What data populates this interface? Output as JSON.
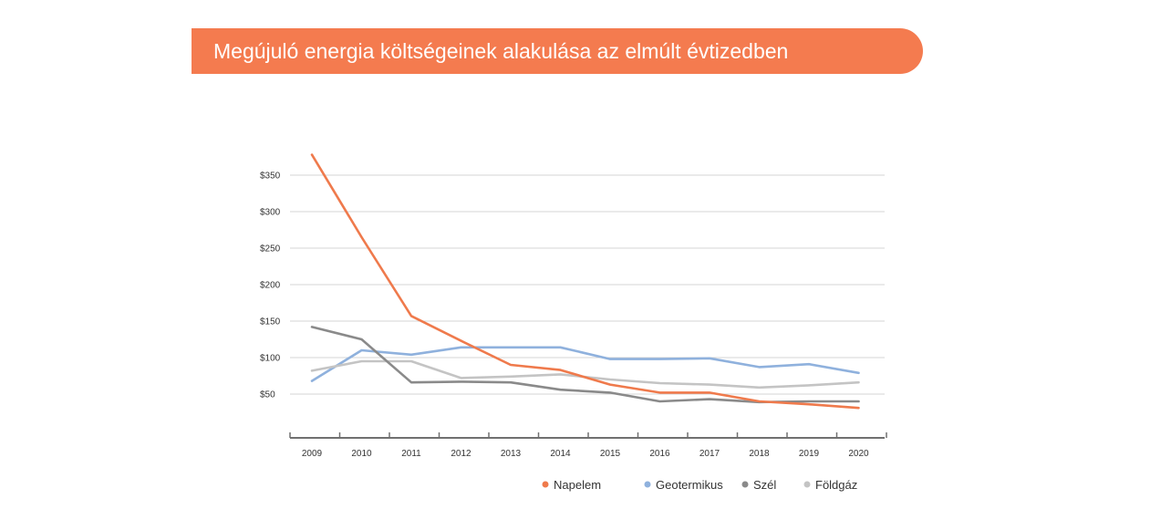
{
  "title": "Megújuló energia költségeinek alakulása az elmúlt évtizedben",
  "colors": {
    "banner": "#f47b4f",
    "Napelem": "#ef7a4c",
    "Geotermikus": "#8fb1dd",
    "Szél": "#8a8a8a",
    "Földgáz": "#c4c4c4",
    "grid": "#d4d4d4",
    "axis": "#707070"
  },
  "chart_data": {
    "type": "line",
    "title": "Megújuló energia költségeinek alakulása az elmúlt évtizedben",
    "xlabel": "",
    "ylabel": "",
    "categories": [
      "2009",
      "2010",
      "2011",
      "2012",
      "2013",
      "2014",
      "2015",
      "2016",
      "2017",
      "2018",
      "2019",
      "2020"
    ],
    "y_ticks": [
      {
        "value": 50,
        "label": "$50"
      },
      {
        "value": 100,
        "label": "$100"
      },
      {
        "value": 150,
        "label": "$150"
      },
      {
        "value": 200,
        "label": "$200"
      },
      {
        "value": 250,
        "label": "$250"
      },
      {
        "value": 300,
        "label": "$300"
      },
      {
        "value": 350,
        "label": "$350"
      }
    ],
    "ylim": [
      0,
      378
    ],
    "grid": true,
    "legend_position": "bottom",
    "series": [
      {
        "name": "Napelem",
        "values": [
          378,
          265,
          157,
          123,
          90,
          83,
          63,
          52,
          52,
          40,
          36,
          31
        ]
      },
      {
        "name": "Geotermikus",
        "values": [
          68,
          110,
          104,
          114,
          114,
          114,
          98,
          98,
          99,
          87,
          91,
          79
        ]
      },
      {
        "name": "Szél",
        "values": [
          142,
          125,
          66,
          67,
          66,
          56,
          52,
          40,
          43,
          39,
          40,
          40
        ]
      },
      {
        "name": "Földgáz",
        "values": [
          82,
          95,
          95,
          72,
          74,
          77,
          70,
          65,
          63,
          59,
          62,
          66
        ]
      }
    ]
  }
}
